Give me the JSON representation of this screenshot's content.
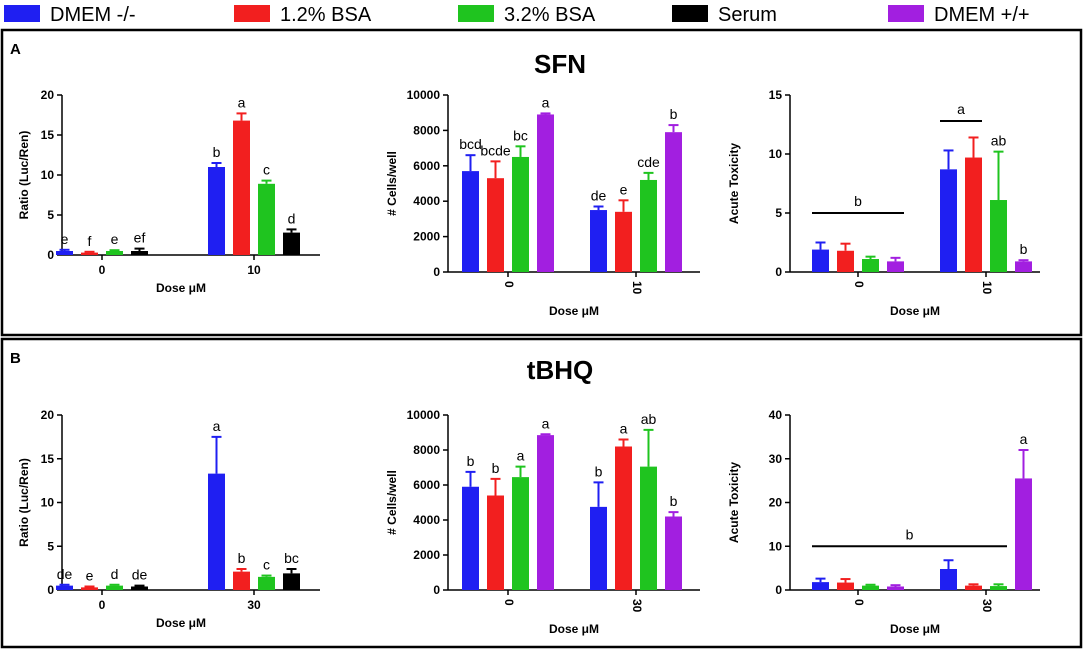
{
  "colors": {
    "dmem_minus": "#1f1ff2",
    "bsa_1_2": "#f21f1f",
    "bsa_3_2": "#1fc41f",
    "serum": "#000000",
    "dmem_plus": "#a21fe0"
  },
  "legend": [
    {
      "label": "DMEM -/-",
      "color_key": "dmem_minus"
    },
    {
      "label": "1.2% BSA",
      "color_key": "bsa_1_2"
    },
    {
      "label": "3.2% BSA",
      "color_key": "bsa_3_2"
    },
    {
      "label": "Serum",
      "color_key": "serum"
    },
    {
      "label": "DMEM +/+",
      "color_key": "dmem_plus"
    }
  ],
  "panels": [
    {
      "letter": "A",
      "title": "SFN"
    },
    {
      "letter": "B",
      "title": "tBHQ"
    }
  ],
  "chart_data": [
    {
      "id": "A1",
      "type": "bar",
      "panel": "A",
      "title": "",
      "xlabel": "Dose μM",
      "ylabel": "Ratio (Luc/Ren)",
      "ylim": [
        0,
        20
      ],
      "yticks": [
        "0",
        "5",
        "10",
        "15",
        "20"
      ],
      "categories": [
        "0",
        "10"
      ],
      "rotated_ticks": false,
      "series": [
        {
          "name": "DMEM -/-",
          "color_key": "dmem_minus",
          "values": [
            0.5,
            11.0
          ],
          "errors": [
            0.15,
            0.5
          ],
          "labels": [
            "e",
            "b"
          ]
        },
        {
          "name": "1.2% BSA",
          "color_key": "bsa_1_2",
          "values": [
            0.3,
            16.8
          ],
          "errors": [
            0.1,
            0.9
          ],
          "labels": [
            "f",
            "a"
          ]
        },
        {
          "name": "3.2% BSA",
          "color_key": "bsa_3_2",
          "values": [
            0.5,
            8.9
          ],
          "errors": [
            0.1,
            0.4
          ],
          "labels": [
            "e",
            "c"
          ]
        },
        {
          "name": "Serum",
          "color_key": "serum",
          "values": [
            0.5,
            2.8
          ],
          "errors": [
            0.3,
            0.4
          ],
          "labels": [
            "ef",
            "d"
          ]
        }
      ],
      "brackets": []
    },
    {
      "id": "A2",
      "type": "bar",
      "panel": "A",
      "title": "",
      "xlabel": "Dose μM",
      "ylabel": "# Cells/well",
      "ylim": [
        0,
        10000
      ],
      "yticks": [
        "0",
        "2000",
        "4000",
        "6000",
        "8000",
        "10000"
      ],
      "categories": [
        "0",
        "10"
      ],
      "rotated_ticks": true,
      "series": [
        {
          "name": "DMEM -/-",
          "color_key": "dmem_minus",
          "values": [
            5700,
            3500
          ],
          "errors": [
            900,
            200
          ],
          "labels": [
            "bcd",
            "de"
          ]
        },
        {
          "name": "1.2% BSA",
          "color_key": "bsa_1_2",
          "values": [
            5300,
            3400
          ],
          "errors": [
            950,
            650
          ],
          "labels": [
            "bcde",
            "e"
          ]
        },
        {
          "name": "3.2% BSA",
          "color_key": "bsa_3_2",
          "values": [
            6500,
            5200
          ],
          "errors": [
            600,
            400
          ],
          "labels": [
            "bc",
            "cde"
          ]
        },
        {
          "name": "DMEM +/+",
          "color_key": "dmem_plus",
          "values": [
            8900,
            7900
          ],
          "errors": [
            60,
            400
          ],
          "labels": [
            "a",
            "b"
          ]
        }
      ],
      "brackets": []
    },
    {
      "id": "A3",
      "type": "bar",
      "panel": "A",
      "title": "",
      "xlabel": "Dose μM",
      "ylabel": "Acute Toxicity",
      "ylim": [
        0,
        15
      ],
      "yticks": [
        "0",
        "5",
        "10",
        "15"
      ],
      "categories": [
        "0",
        "10"
      ],
      "rotated_ticks": true,
      "series": [
        {
          "name": "DMEM -/-",
          "color_key": "dmem_minus",
          "values": [
            1.9,
            8.7
          ],
          "errors": [
            0.6,
            1.6
          ],
          "labels": [
            "",
            ""
          ]
        },
        {
          "name": "1.2% BSA",
          "color_key": "bsa_1_2",
          "values": [
            1.8,
            9.7
          ],
          "errors": [
            0.6,
            1.7
          ],
          "labels": [
            "",
            ""
          ]
        },
        {
          "name": "3.2% BSA",
          "color_key": "bsa_3_2",
          "values": [
            1.1,
            6.1
          ],
          "errors": [
            0.2,
            4.1
          ],
          "labels": [
            "",
            "ab"
          ]
        },
        {
          "name": "DMEM +/+",
          "color_key": "dmem_plus",
          "values": [
            0.9,
            0.9
          ],
          "errors": [
            0.3,
            0.1
          ],
          "labels": [
            "",
            "b"
          ]
        }
      ],
      "brackets": [
        {
          "label": "b",
          "value": 5.0,
          "from": [
            0,
            0
          ],
          "to": [
            0,
            3
          ]
        },
        {
          "label": "a",
          "value": 12.8,
          "from": [
            1,
            0
          ],
          "to": [
            1,
            1
          ]
        }
      ]
    },
    {
      "id": "B1",
      "type": "bar",
      "panel": "B",
      "title": "",
      "xlabel": "Dose μM",
      "ylabel": "Ratio (Luc/Ren)",
      "ylim": [
        0,
        20
      ],
      "yticks": [
        "0",
        "5",
        "10",
        "15",
        "20"
      ],
      "categories": [
        "0",
        "30"
      ],
      "rotated_ticks": false,
      "series": [
        {
          "name": "DMEM -/-",
          "color_key": "dmem_minus",
          "values": [
            0.5,
            13.3
          ],
          "errors": [
            0.1,
            4.2
          ],
          "labels": [
            "de",
            "a"
          ]
        },
        {
          "name": "1.2% BSA",
          "color_key": "bsa_1_2",
          "values": [
            0.3,
            2.1
          ],
          "errors": [
            0.1,
            0.3
          ],
          "labels": [
            "e",
            "b"
          ]
        },
        {
          "name": "3.2% BSA",
          "color_key": "bsa_3_2",
          "values": [
            0.5,
            1.5
          ],
          "errors": [
            0.1,
            0.15
          ],
          "labels": [
            "d",
            "c"
          ]
        },
        {
          "name": "Serum",
          "color_key": "serum",
          "values": [
            0.4,
            1.9
          ],
          "errors": [
            0.1,
            0.5
          ],
          "labels": [
            "de",
            "bc"
          ]
        }
      ],
      "brackets": []
    },
    {
      "id": "B2",
      "type": "bar",
      "panel": "B",
      "title": "",
      "xlabel": "Dose μM",
      "ylabel": "# Cells/well",
      "ylim": [
        0,
        10000
      ],
      "yticks": [
        "0",
        "2000",
        "4000",
        "6000",
        "8000",
        "10000"
      ],
      "categories": [
        "0",
        "30"
      ],
      "rotated_ticks": true,
      "series": [
        {
          "name": "DMEM -/-",
          "color_key": "dmem_minus",
          "values": [
            5900,
            4750
          ],
          "errors": [
            850,
            1400
          ],
          "labels": [
            "b",
            "b"
          ]
        },
        {
          "name": "1.2% BSA",
          "color_key": "bsa_1_2",
          "values": [
            5400,
            8200
          ],
          "errors": [
            950,
            400
          ],
          "labels": [
            "b",
            "a"
          ]
        },
        {
          "name": "3.2% BSA",
          "color_key": "bsa_3_2",
          "values": [
            6450,
            7050
          ],
          "errors": [
            600,
            2100
          ],
          "labels": [
            "a",
            "ab"
          ]
        },
        {
          "name": "DMEM +/+",
          "color_key": "dmem_plus",
          "values": [
            8850,
            4200
          ],
          "errors": [
            50,
            250
          ],
          "labels": [
            "a",
            "b"
          ]
        }
      ],
      "brackets": []
    },
    {
      "id": "B3",
      "type": "bar",
      "panel": "B",
      "title": "",
      "xlabel": "Dose μM",
      "ylabel": "Acute Toxicity",
      "ylim": [
        0,
        40
      ],
      "yticks": [
        "0",
        "10",
        "20",
        "30",
        "40"
      ],
      "categories": [
        "0",
        "30"
      ],
      "rotated_ticks": true,
      "series": [
        {
          "name": "DMEM -/-",
          "color_key": "dmem_minus",
          "values": [
            1.8,
            4.8
          ],
          "errors": [
            0.8,
            2.0
          ],
          "labels": [
            "",
            ""
          ]
        },
        {
          "name": "1.2% BSA",
          "color_key": "bsa_1_2",
          "values": [
            1.7,
            1.0
          ],
          "errors": [
            0.8,
            0.3
          ],
          "labels": [
            "",
            ""
          ]
        },
        {
          "name": "3.2% BSA",
          "color_key": "bsa_3_2",
          "values": [
            1.0,
            0.9
          ],
          "errors": [
            0.2,
            0.4
          ],
          "labels": [
            "",
            ""
          ]
        },
        {
          "name": "DMEM +/+",
          "color_key": "dmem_plus",
          "values": [
            0.8,
            25.5
          ],
          "errors": [
            0.3,
            6.5
          ],
          "labels": [
            "",
            "a"
          ]
        }
      ],
      "brackets": [
        {
          "label": "b",
          "value": 10.0,
          "from": [
            0,
            0
          ],
          "to": [
            1,
            2
          ]
        }
      ]
    }
  ]
}
